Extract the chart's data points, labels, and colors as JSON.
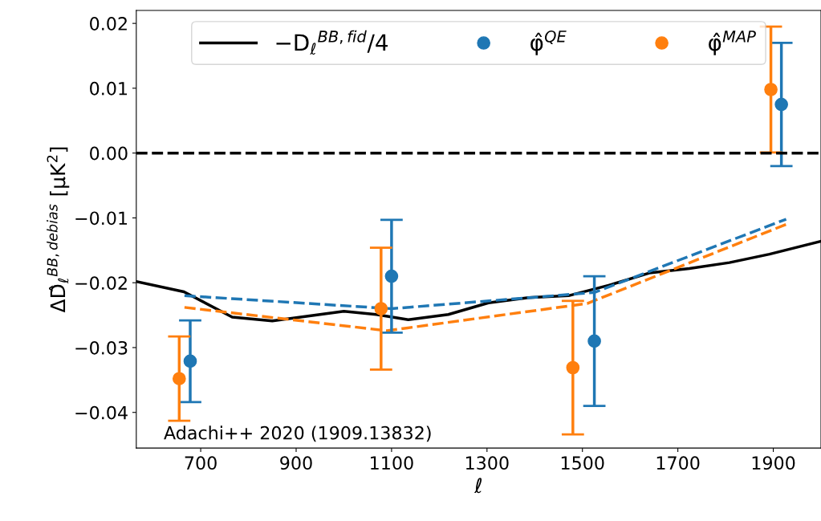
{
  "chart_data": {
    "type": "line",
    "xlabel": "ℓ",
    "ylabel": "ΔD̂$_{ℓ}$$^{BB,debias}$ [μK$^{2}$]",
    "xlim": [
      565,
      2000
    ],
    "xticks": [
      700,
      900,
      1100,
      1300,
      1500,
      1700,
      1900
    ],
    "ylim": [
      -0.0455,
      0.022
    ],
    "yticks": [
      {
        "value": -0.04,
        "label": "−0.04"
      },
      {
        "value": -0.03,
        "label": "−0.03"
      },
      {
        "value": -0.02,
        "label": "−0.02"
      },
      {
        "value": -0.01,
        "label": "−0.01"
      },
      {
        "value": 0.0,
        "label": "0.00"
      },
      {
        "value": 0.01,
        "label": "0.01"
      },
      {
        "value": 0.02,
        "label": "0.02"
      }
    ],
    "grid": false,
    "legend": "top",
    "series": [
      {
        "name": "−D$_{ℓ}$$^{BB,fid}$/4",
        "color": "#000000",
        "line_style": "solid",
        "x": [
          565,
          665,
          766,
          850,
          950,
          1000,
          1068,
          1135,
          1219,
          1303,
          1387,
          1471,
          1555,
          1640,
          1724,
          1808,
          1892,
          2000
        ],
        "values": [
          -0.0198,
          -0.0214,
          -0.0253,
          -0.0259,
          -0.0249,
          -0.0244,
          -0.0249,
          -0.0257,
          -0.0249,
          -0.0231,
          -0.0223,
          -0.022,
          -0.0204,
          -0.0185,
          -0.0178,
          -0.0169,
          -0.0156,
          -0.0136
        ]
      },
      {
        "color": "#1f77b4",
        "line_style": "dashed",
        "x": [
          666,
          1100,
          1525,
          1927
        ],
        "values": [
          -0.022,
          -0.024,
          -0.0215,
          -0.0102
        ]
      },
      {
        "color": "#ff7f0e",
        "line_style": "dashed",
        "x": [
          666,
          1090,
          1510,
          1927
        ],
        "values": [
          -0.0238,
          -0.0274,
          -0.0232,
          -0.011
        ]
      },
      {
        "name": "φ̂$^{QE}$",
        "type": "scatter",
        "marker": "circle",
        "color": "#1f77b4",
        "x": [
          678,
          1100,
          1525,
          1917
        ],
        "values": [
          -0.0321,
          -0.019,
          -0.029,
          0.0075
        ],
        "errors": [
          0.0063,
          0.0087,
          0.01,
          0.0095
        ]
      },
      {
        "name": "φ̂$^{MAP}$",
        "type": "scatter",
        "marker": "circle",
        "color": "#ff7f0e",
        "x": [
          655,
          1078,
          1480,
          1895
        ],
        "values": [
          -0.0348,
          -0.024,
          -0.0331,
          0.0098
        ],
        "errors": [
          0.0065,
          0.0094,
          0.0103,
          0.0097
        ]
      }
    ],
    "ref_lines": [
      {
        "axis": "y",
        "value": 0.0,
        "color": "#000000",
        "line_style": "dashed"
      }
    ],
    "annotations": [
      "Adachi++ 2020 (1909.13832)"
    ]
  }
}
